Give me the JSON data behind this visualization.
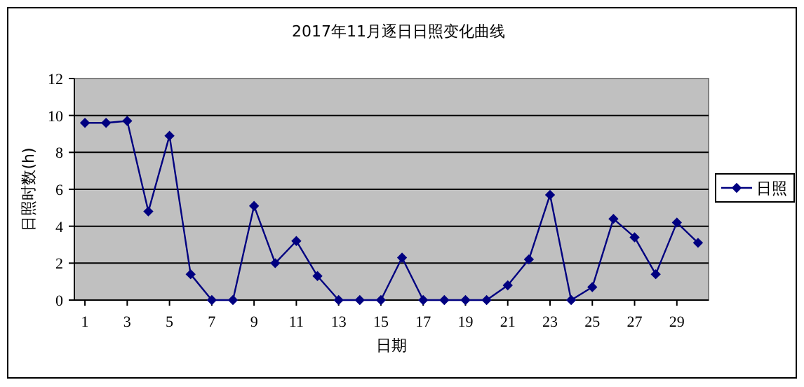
{
  "chart_data": {
    "type": "line",
    "title": "2017年11月逐日日照变化曲线",
    "xlabel": "日期",
    "ylabel": "日照时数(h)",
    "x": [
      1,
      2,
      3,
      4,
      5,
      6,
      7,
      8,
      9,
      10,
      11,
      12,
      13,
      14,
      15,
      16,
      17,
      18,
      19,
      20,
      21,
      22,
      23,
      24,
      25,
      26,
      27,
      28,
      29,
      30
    ],
    "xlim": [
      0.5,
      30.5
    ],
    "xticks": [
      1,
      3,
      5,
      7,
      9,
      11,
      13,
      15,
      17,
      19,
      21,
      23,
      25,
      27,
      29
    ],
    "series": [
      {
        "name": "日照",
        "color": "#000080",
        "values": [
          9.6,
          9.6,
          9.7,
          4.8,
          8.9,
          1.4,
          0,
          0,
          5.1,
          2.0,
          3.2,
          1.3,
          0,
          0,
          0,
          2.3,
          0,
          0,
          0,
          0,
          0.8,
          2.2,
          5.7,
          0,
          0.7,
          4.4,
          3.4,
          1.4,
          4.2,
          3.1
        ]
      }
    ],
    "ylim": [
      0,
      12
    ],
    "yticks": [
      0,
      2,
      4,
      6,
      8,
      10,
      12
    ],
    "grid": "y",
    "legend": "right",
    "marker": "diamond",
    "line_style": "solid"
  }
}
